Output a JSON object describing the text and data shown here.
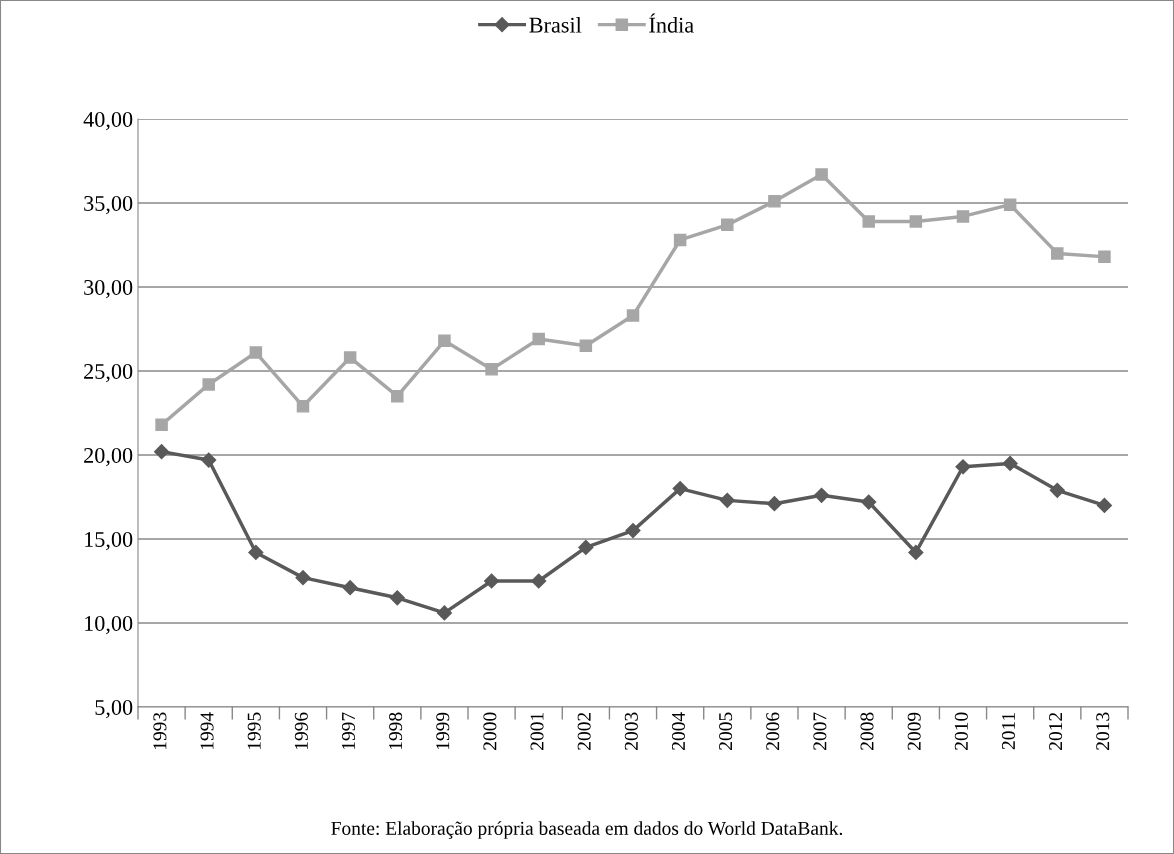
{
  "chart_data": {
    "type": "line",
    "categories": [
      "1993",
      "1994",
      "1995",
      "1996",
      "1997",
      "1998",
      "1999",
      "2000",
      "2001",
      "2002",
      "2003",
      "2004",
      "2005",
      "2006",
      "2007",
      "2008",
      "2009",
      "2010",
      "2011",
      "2012",
      "2013"
    ],
    "series": [
      {
        "name": "Brasil",
        "color": "#595959",
        "marker": "diamond",
        "values": [
          20.2,
          19.7,
          14.2,
          12.7,
          12.1,
          11.5,
          10.6,
          12.5,
          12.5,
          14.5,
          15.5,
          18.0,
          17.3,
          17.1,
          17.6,
          17.2,
          14.2,
          19.3,
          19.5,
          17.9,
          17.0
        ]
      },
      {
        "name": "Índia",
        "color": "#a6a6a6",
        "marker": "square",
        "values": [
          21.8,
          24.2,
          26.1,
          22.9,
          25.8,
          23.5,
          26.8,
          25.1,
          26.9,
          26.5,
          28.3,
          32.8,
          33.7,
          35.1,
          36.7,
          33.9,
          33.9,
          34.2,
          34.9,
          32.0,
          31.8
        ]
      }
    ],
    "ylim": [
      5,
      40
    ],
    "yticks": [
      {
        "value": 5,
        "label": "5,00"
      },
      {
        "value": 10,
        "label": "10,00"
      },
      {
        "value": 15,
        "label": "15,00"
      },
      {
        "value": 20,
        "label": "20,00"
      },
      {
        "value": 25,
        "label": "25,00"
      },
      {
        "value": 30,
        "label": "30,00"
      },
      {
        "value": 35,
        "label": "35,00"
      },
      {
        "value": 40,
        "label": "40,00"
      }
    ],
    "grid": "y",
    "legend": "top",
    "line_style": "solid",
    "annotations": [
      "Fonte: Elaboração própria baseada em dados do World DataBank."
    ]
  }
}
